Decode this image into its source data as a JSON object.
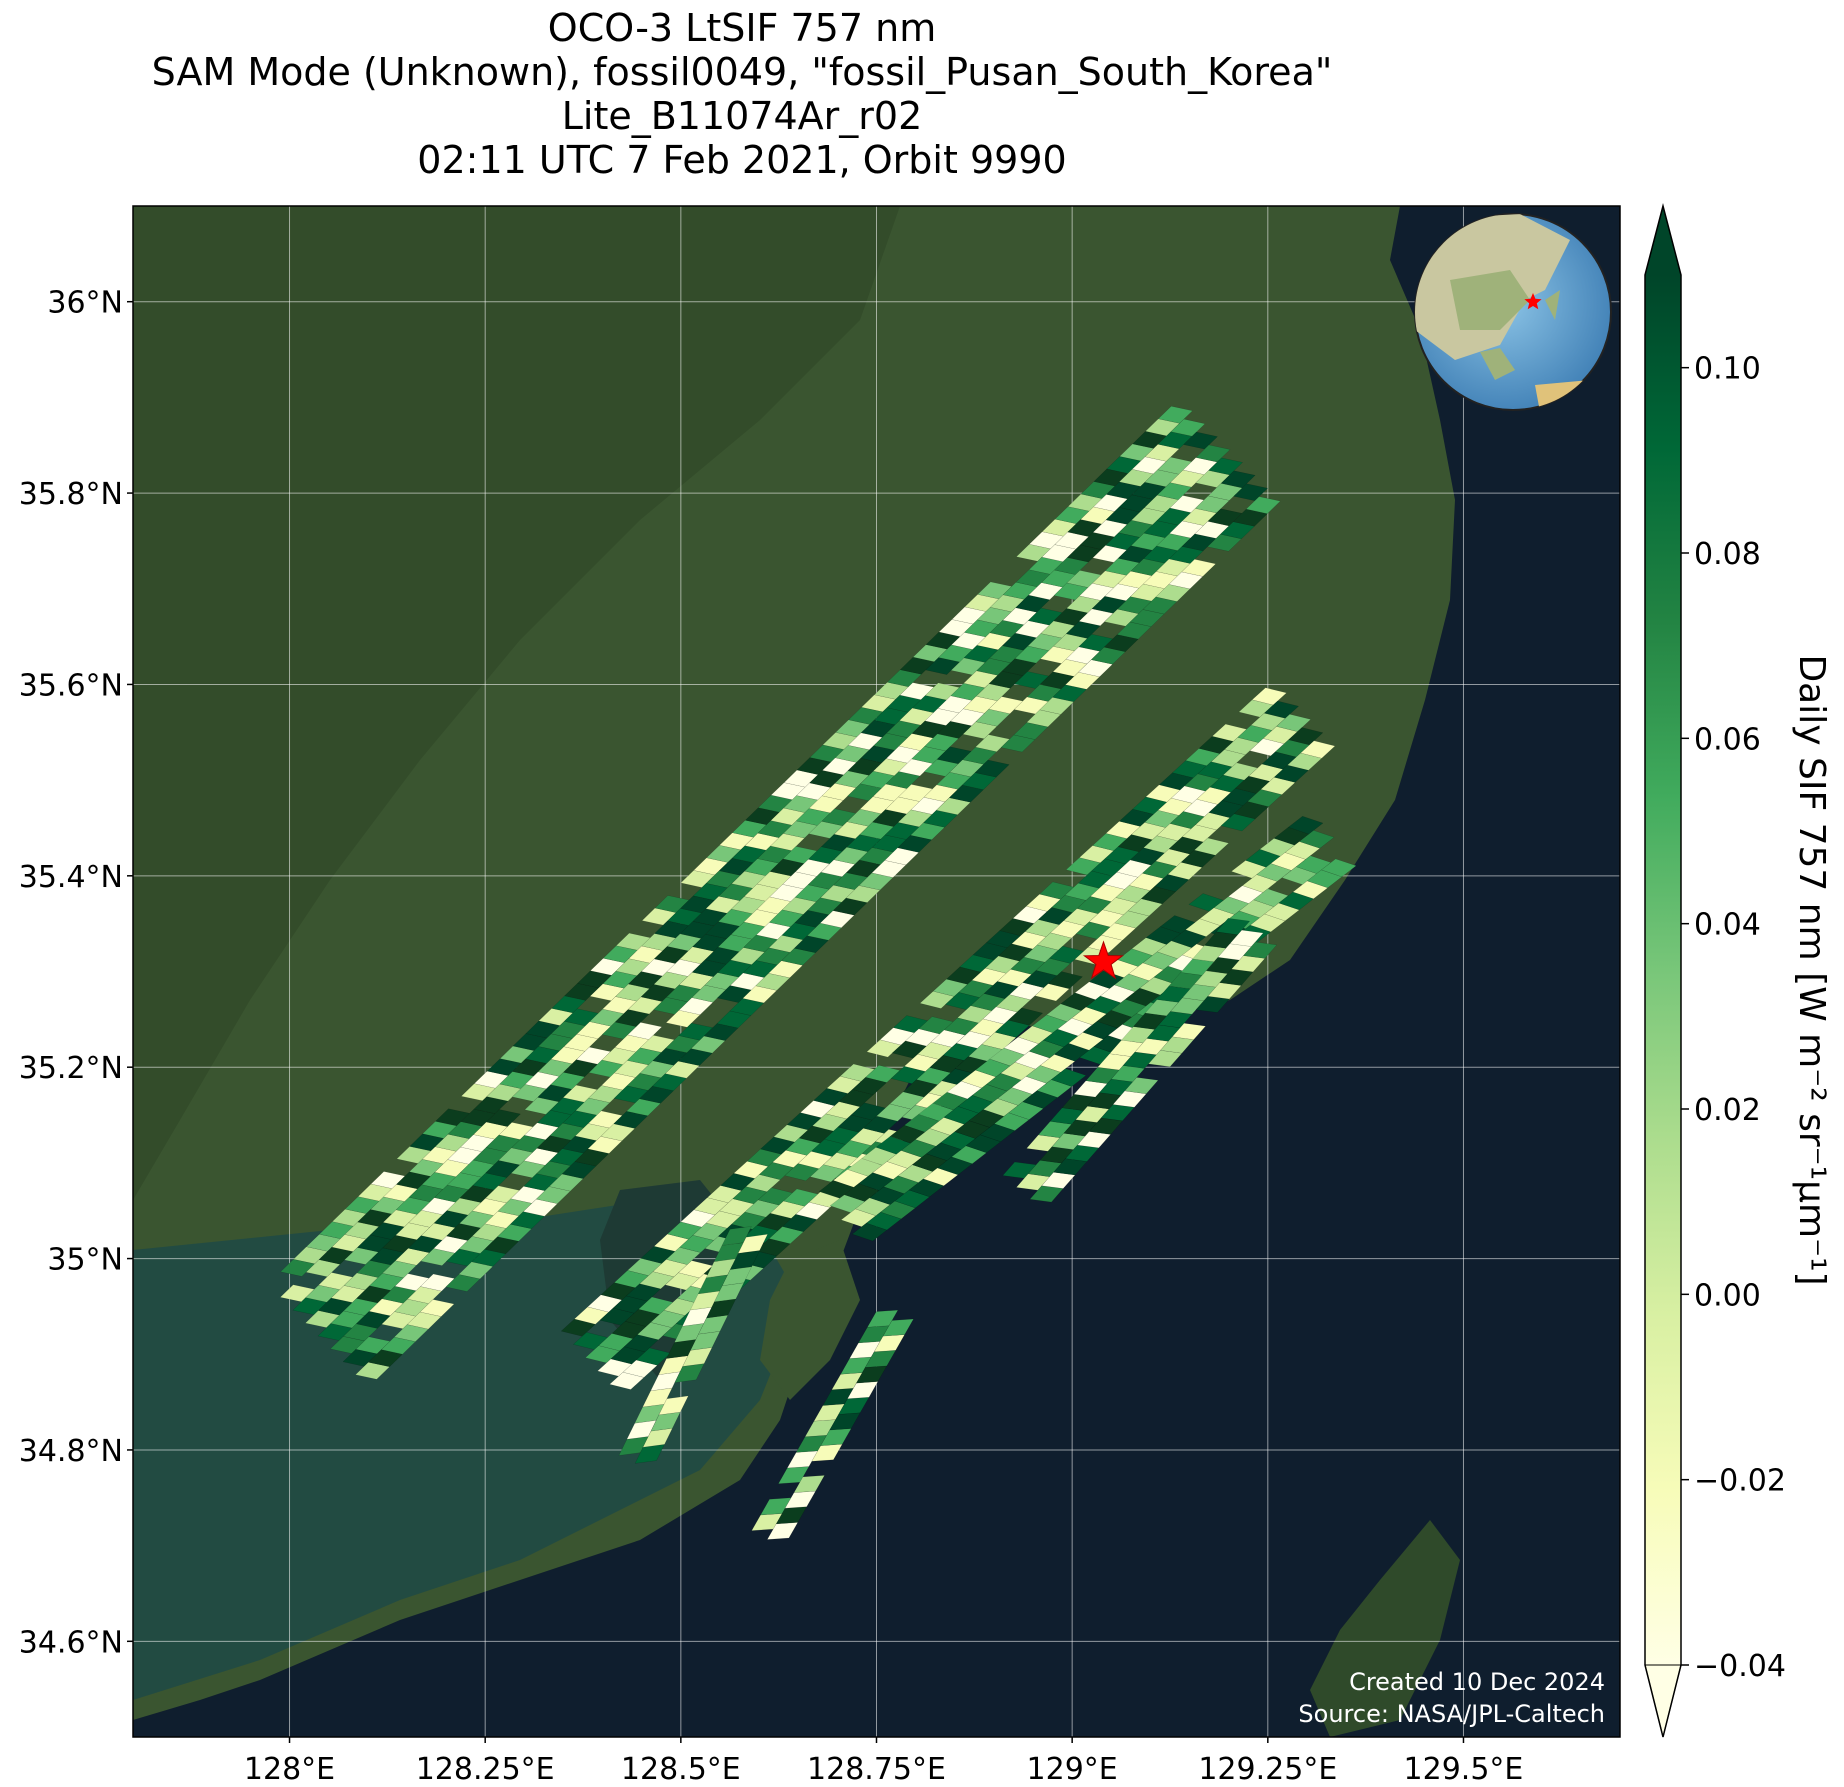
{
  "titles": [
    "OCO-3 LtSIF 757 nm",
    "SAM Mode (Unknown), fossil0049, \"fossil_Pusan_South_Korea\"",
    "Lite_B11074Ar_r02",
    "02:11 UTC 7 Feb 2021, Orbit 9990"
  ],
  "map": {
    "lon_range": [
      127.8,
      129.7
    ],
    "lat_range": [
      34.5,
      36.1
    ],
    "lon_ticks": [
      128.0,
      128.25,
      128.5,
      128.75,
      129.0,
      129.25,
      129.5
    ],
    "lon_tick_labels": [
      "128°E",
      "128.25°E",
      "128.5°E",
      "128.75°E",
      "129°E",
      "129.25°E",
      "129.5°E"
    ],
    "lat_ticks": [
      34.6,
      34.8,
      35.0,
      35.2,
      35.4,
      35.6,
      35.8,
      36.0
    ],
    "lat_tick_labels": [
      "34.6°N",
      "34.8°N",
      "35°N",
      "35.2°N",
      "35.4°N",
      "35.6°N",
      "35.8°N",
      "36°N"
    ],
    "target": {
      "lon": 129.04,
      "lat": 35.31,
      "marker": "red-star"
    },
    "gridlines": true,
    "basemap": "satellite-imagery",
    "land_color": "#3a5530",
    "sea_color": "#0f1e2e"
  },
  "colorbar": {
    "label": "Daily SIF 757 nm [W m⁻² sr⁻¹μm⁻¹]",
    "min": -0.04,
    "max": 0.11,
    "ticks": [
      -0.04,
      -0.02,
      0.0,
      0.02,
      0.04,
      0.06,
      0.08,
      0.1
    ],
    "tick_labels": [
      "−0.04",
      "−0.02",
      "0.00",
      "0.02",
      "0.04",
      "0.06",
      "0.08",
      "0.10"
    ],
    "colormap": "YlGn",
    "extend": "both"
  },
  "inset": {
    "content": "globe-locator",
    "marker": "red-star"
  },
  "credits": [
    "Created 10 Dec 2024",
    "Source: NASA/JPL-Caltech"
  ],
  "chart_data": {
    "type": "swath-map",
    "swaths": [
      {
        "start": [
          128.05,
          34.93
        ],
        "end": [
          129.22,
          35.86
        ]
      },
      {
        "start": [
          128.4,
          34.9
        ],
        "end": [
          129.31,
          35.58
        ]
      },
      {
        "start": [
          128.72,
          35.05
        ],
        "end": [
          129.35,
          35.45
        ]
      },
      {
        "start": [
          128.95,
          35.08
        ],
        "end": [
          129.25,
          35.36
        ]
      },
      {
        "start": [
          128.45,
          34.8
        ],
        "end": [
          128.6,
          35.05
        ]
      },
      {
        "start": [
          128.62,
          34.72
        ],
        "end": [
          128.78,
          34.95
        ]
      }
    ]
  }
}
